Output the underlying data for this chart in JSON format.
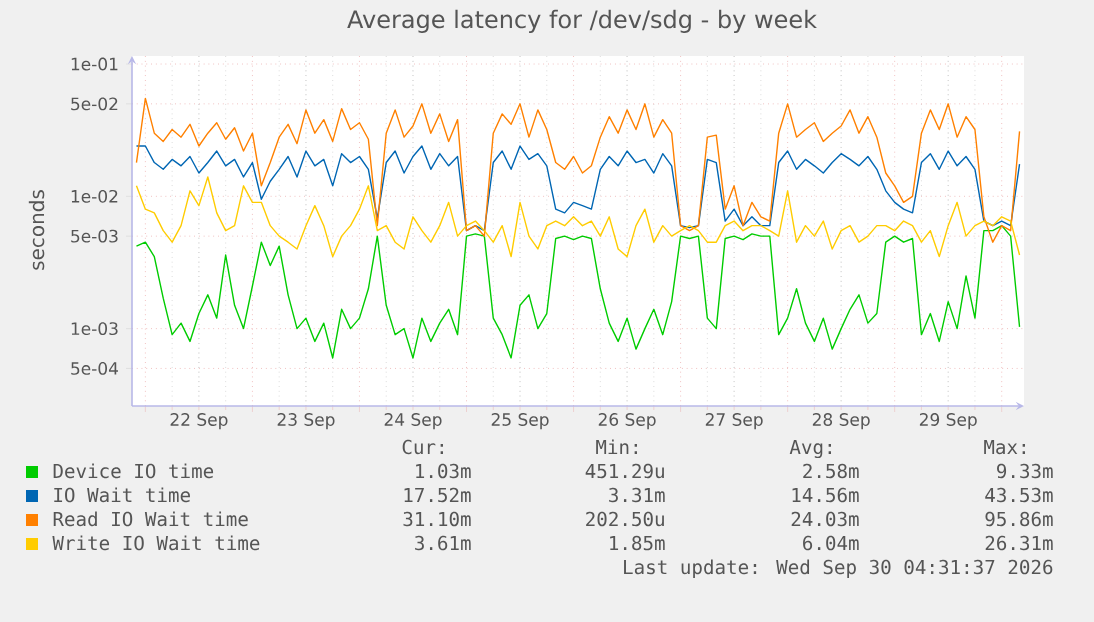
{
  "chart_data": {
    "type": "line",
    "title": "Average latency for /dev/sdg - by week",
    "ylabel": "seconds",
    "log": true,
    "grid": true,
    "legend": "bottom",
    "xlim": [
      "2026-09-21T21:00",
      "2026-09-30T05:00"
    ],
    "xticks": [
      {
        "value": "2026-09-22T00:00",
        "label": null
      },
      {
        "value": "2026-09-22T12:00",
        "label": "22 Sep"
      },
      {
        "value": "2026-09-23T00:00",
        "label": null
      },
      {
        "value": "2026-09-23T12:00",
        "label": "23 Sep"
      },
      {
        "value": "2026-09-24T00:00",
        "label": null
      },
      {
        "value": "2026-09-24T12:00",
        "label": "24 Sep"
      },
      {
        "value": "2026-09-25T00:00",
        "label": null
      },
      {
        "value": "2026-09-25T12:00",
        "label": "25 Sep"
      },
      {
        "value": "2026-09-26T00:00",
        "label": null
      },
      {
        "value": "2026-09-26T12:00",
        "label": "26 Sep"
      },
      {
        "value": "2026-09-27T00:00",
        "label": null
      },
      {
        "value": "2026-09-27T12:00",
        "label": "27 Sep"
      },
      {
        "value": "2026-09-28T00:00",
        "label": null
      },
      {
        "value": "2026-09-28T12:00",
        "label": "28 Sep"
      },
      {
        "value": "2026-09-29T00:00",
        "label": null
      },
      {
        "value": "2026-09-29T12:00",
        "label": "29 Sep"
      },
      {
        "value": "2026-09-30T00:00",
        "label": null
      }
    ],
    "ylim": [
      0.00026,
      0.115
    ],
    "yticks": [
      {
        "value": 0.0005,
        "label": "5e-04"
      },
      {
        "value": 0.001,
        "label": "1e-03"
      },
      {
        "value": 0.005,
        "label": "5e-03"
      },
      {
        "value": 0.01,
        "label": "1e-02"
      },
      {
        "value": 0.05,
        "label": "5e-02"
      },
      {
        "value": 0.1,
        "label": "1e-01"
      }
    ],
    "x": [
      "2026-09-21T22:00",
      "2026-09-22T00:00",
      "2026-09-22T02:00",
      "2026-09-22T04:00",
      "2026-09-22T06:00",
      "2026-09-22T08:00",
      "2026-09-22T10:00",
      "2026-09-22T12:00",
      "2026-09-22T14:00",
      "2026-09-22T16:00",
      "2026-09-22T18:00",
      "2026-09-22T20:00",
      "2026-09-22T22:00",
      "2026-09-23T00:00",
      "2026-09-23T02:00",
      "2026-09-23T04:00",
      "2026-09-23T06:00",
      "2026-09-23T08:00",
      "2026-09-23T10:00",
      "2026-09-23T12:00",
      "2026-09-23T14:00",
      "2026-09-23T16:00",
      "2026-09-23T18:00",
      "2026-09-23T20:00",
      "2026-09-23T22:00",
      "2026-09-24T00:00",
      "2026-09-24T02:00",
      "2026-09-24T04:00",
      "2026-09-24T06:00",
      "2026-09-24T08:00",
      "2026-09-24T10:00",
      "2026-09-24T12:00",
      "2026-09-24T14:00",
      "2026-09-24T16:00",
      "2026-09-24T18:00",
      "2026-09-24T20:00",
      "2026-09-24T22:00",
      "2026-09-25T00:00",
      "2026-09-25T02:00",
      "2026-09-25T04:00",
      "2026-09-25T06:00",
      "2026-09-25T08:00",
      "2026-09-25T10:00",
      "2026-09-25T12:00",
      "2026-09-25T14:00",
      "2026-09-25T16:00",
      "2026-09-25T18:00",
      "2026-09-25T20:00",
      "2026-09-25T22:00",
      "2026-09-26T00:00",
      "2026-09-26T02:00",
      "2026-09-26T04:00",
      "2026-09-26T06:00",
      "2026-09-26T08:00",
      "2026-09-26T10:00",
      "2026-09-26T12:00",
      "2026-09-26T14:00",
      "2026-09-26T16:00",
      "2026-09-26T18:00",
      "2026-09-26T20:00",
      "2026-09-26T22:00",
      "2026-09-27T00:00",
      "2026-09-27T02:00",
      "2026-09-27T04:00",
      "2026-09-27T06:00",
      "2026-09-27T08:00",
      "2026-09-27T10:00",
      "2026-09-27T12:00",
      "2026-09-27T14:00",
      "2026-09-27T16:00",
      "2026-09-27T18:00",
      "2026-09-27T20:00",
      "2026-09-27T22:00",
      "2026-09-28T00:00",
      "2026-09-28T02:00",
      "2026-09-28T04:00",
      "2026-09-28T06:00",
      "2026-09-28T08:00",
      "2026-09-28T10:00",
      "2026-09-28T12:00",
      "2026-09-28T14:00",
      "2026-09-28T16:00",
      "2026-09-28T18:00",
      "2026-09-28T20:00",
      "2026-09-28T22:00",
      "2026-09-29T00:00",
      "2026-09-29T02:00",
      "2026-09-29T04:00",
      "2026-09-29T06:00",
      "2026-09-29T08:00",
      "2026-09-29T10:00",
      "2026-09-29T12:00",
      "2026-09-29T14:00",
      "2026-09-29T16:00",
      "2026-09-29T18:00",
      "2026-09-29T20:00",
      "2026-09-29T22:00",
      "2026-09-30T00:00",
      "2026-09-30T02:00",
      "2026-09-30T04:00"
    ],
    "series": [
      {
        "name": "Device IO time",
        "color": "#00cc00",
        "values": [
          0.0042,
          0.0045,
          0.0035,
          0.0017,
          0.0009,
          0.0011,
          0.0008,
          0.0013,
          0.0018,
          0.0012,
          0.0036,
          0.0015,
          0.001,
          0.0021,
          0.0045,
          0.003,
          0.0042,
          0.0018,
          0.001,
          0.0012,
          0.0008,
          0.0011,
          0.0006,
          0.0014,
          0.001,
          0.0012,
          0.002,
          0.005,
          0.0015,
          0.0009,
          0.001,
          0.0006,
          0.0012,
          0.0008,
          0.0011,
          0.0014,
          0.0009,
          0.005,
          0.0052,
          0.005,
          0.0012,
          0.0009,
          0.0006,
          0.0015,
          0.0018,
          0.001,
          0.0013,
          0.0048,
          0.005,
          0.0047,
          0.005,
          0.0048,
          0.002,
          0.0011,
          0.0008,
          0.0012,
          0.0007,
          0.001,
          0.0014,
          0.0009,
          0.0016,
          0.005,
          0.0048,
          0.005,
          0.0012,
          0.001,
          0.0048,
          0.005,
          0.0047,
          0.0052,
          0.005,
          0.005,
          0.0009,
          0.0012,
          0.002,
          0.0011,
          0.0008,
          0.0012,
          0.0007,
          0.001,
          0.0014,
          0.0018,
          0.0011,
          0.0013,
          0.0045,
          0.005,
          0.0045,
          0.0048,
          0.0009,
          0.0013,
          0.0008,
          0.0016,
          0.001,
          0.0025,
          0.0012,
          0.0055,
          0.0055,
          0.006,
          0.005,
          0.00103
        ]
      },
      {
        "name": "IO Wait time",
        "color": "#0066b3",
        "values": [
          0.024,
          0.024,
          0.018,
          0.016,
          0.019,
          0.017,
          0.02,
          0.015,
          0.018,
          0.022,
          0.017,
          0.019,
          0.014,
          0.018,
          0.0095,
          0.013,
          0.016,
          0.02,
          0.014,
          0.022,
          0.017,
          0.019,
          0.012,
          0.021,
          0.018,
          0.02,
          0.016,
          0.0068,
          0.018,
          0.022,
          0.015,
          0.02,
          0.024,
          0.016,
          0.021,
          0.017,
          0.02,
          0.0055,
          0.006,
          0.0055,
          0.018,
          0.022,
          0.016,
          0.024,
          0.019,
          0.021,
          0.017,
          0.008,
          0.0075,
          0.009,
          0.0085,
          0.008,
          0.016,
          0.02,
          0.017,
          0.022,
          0.018,
          0.019,
          0.015,
          0.021,
          0.017,
          0.006,
          0.0058,
          0.006,
          0.019,
          0.018,
          0.0065,
          0.008,
          0.006,
          0.007,
          0.006,
          0.006,
          0.018,
          0.022,
          0.016,
          0.019,
          0.017,
          0.015,
          0.018,
          0.021,
          0.019,
          0.017,
          0.02,
          0.016,
          0.011,
          0.009,
          0.008,
          0.0075,
          0.018,
          0.021,
          0.016,
          0.022,
          0.017,
          0.02,
          0.016,
          0.0065,
          0.006,
          0.0065,
          0.006,
          0.0175
        ]
      },
      {
        "name": "Read IO Wait time",
        "color": "#ff8000",
        "values": [
          0.018,
          0.055,
          0.03,
          0.026,
          0.032,
          0.028,
          0.035,
          0.024,
          0.03,
          0.036,
          0.027,
          0.033,
          0.022,
          0.03,
          0.012,
          0.018,
          0.028,
          0.035,
          0.025,
          0.045,
          0.03,
          0.038,
          0.026,
          0.046,
          0.032,
          0.036,
          0.027,
          0.006,
          0.03,
          0.045,
          0.028,
          0.034,
          0.05,
          0.03,
          0.042,
          0.026,
          0.038,
          0.0055,
          0.006,
          0.005,
          0.03,
          0.042,
          0.035,
          0.05,
          0.028,
          0.045,
          0.032,
          0.018,
          0.016,
          0.02,
          0.015,
          0.017,
          0.028,
          0.04,
          0.03,
          0.045,
          0.032,
          0.05,
          0.028,
          0.038,
          0.03,
          0.006,
          0.0055,
          0.006,
          0.028,
          0.029,
          0.008,
          0.012,
          0.006,
          0.009,
          0.007,
          0.0065,
          0.03,
          0.05,
          0.028,
          0.032,
          0.036,
          0.026,
          0.03,
          0.034,
          0.045,
          0.03,
          0.04,
          0.028,
          0.015,
          0.012,
          0.009,
          0.01,
          0.03,
          0.045,
          0.032,
          0.05,
          0.028,
          0.04,
          0.032,
          0.007,
          0.0045,
          0.006,
          0.0055,
          0.031
        ]
      },
      {
        "name": "Write IO Wait time",
        "color": "#ffcc00",
        "values": [
          0.012,
          0.008,
          0.0075,
          0.0055,
          0.0045,
          0.006,
          0.011,
          0.0085,
          0.014,
          0.0075,
          0.0055,
          0.006,
          0.012,
          0.009,
          0.009,
          0.006,
          0.005,
          0.0045,
          0.004,
          0.006,
          0.0085,
          0.006,
          0.0035,
          0.005,
          0.006,
          0.008,
          0.012,
          0.0055,
          0.006,
          0.0045,
          0.004,
          0.007,
          0.0055,
          0.0045,
          0.006,
          0.009,
          0.005,
          0.006,
          0.0065,
          0.0055,
          0.0045,
          0.006,
          0.0035,
          0.009,
          0.005,
          0.004,
          0.006,
          0.0065,
          0.006,
          0.007,
          0.006,
          0.0065,
          0.005,
          0.007,
          0.004,
          0.0035,
          0.006,
          0.008,
          0.0045,
          0.006,
          0.005,
          0.0055,
          0.006,
          0.0055,
          0.0045,
          0.0045,
          0.006,
          0.0065,
          0.0055,
          0.006,
          0.006,
          0.0055,
          0.005,
          0.011,
          0.0045,
          0.006,
          0.005,
          0.0065,
          0.004,
          0.0055,
          0.006,
          0.0045,
          0.005,
          0.006,
          0.006,
          0.0055,
          0.0065,
          0.006,
          0.0045,
          0.0055,
          0.0035,
          0.006,
          0.009,
          0.005,
          0.006,
          0.0065,
          0.006,
          0.007,
          0.0065,
          0.0036
        ]
      }
    ],
    "annotations": [
      "Cur:",
      "Min:",
      "Avg:",
      "Max:",
      "1.03m",
      "451.29u",
      "2.58m",
      "9.33m",
      "17.52m",
      "3.31m",
      "14.56m",
      "43.53m",
      "31.10m",
      "202.50u",
      "24.03m",
      "95.86m",
      "3.61m",
      "1.85m",
      "6.04m",
      "26.31m",
      "Last update: Wed Sep 30 04:31:37 2026"
    ]
  }
}
